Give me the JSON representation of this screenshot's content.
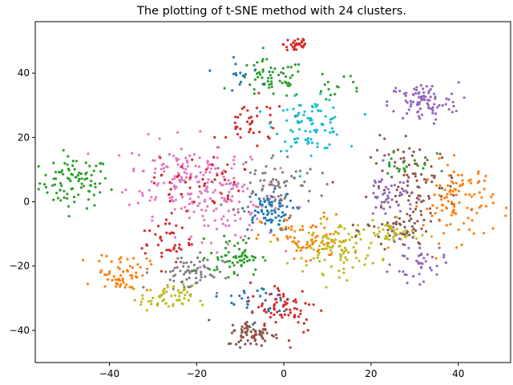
{
  "chart_data": {
    "type": "scatter",
    "title": "The plotting of t-SNE method with 24 clusters.",
    "xlabel": "",
    "ylabel": "",
    "xlim": [
      -57,
      52
    ],
    "ylim": [
      -50,
      56
    ],
    "xticks": [
      -40,
      -20,
      0,
      20,
      40
    ],
    "yticks": [
      -40,
      -20,
      0,
      20,
      40
    ],
    "grid": false,
    "legend": "none",
    "palette": [
      "#1f77b4",
      "#ff7f0e",
      "#2ca02c",
      "#d62728",
      "#9467bd",
      "#8c564b",
      "#e377c2",
      "#7f7f7f",
      "#bcbd22",
      "#17becf"
    ],
    "clusters": [
      {
        "color": "#2ca02c",
        "center": [
          -48,
          6
        ],
        "spread": [
          4,
          4
        ],
        "count": 90
      },
      {
        "color": "#e377c2",
        "center": [
          -24,
          8
        ],
        "spread": [
          6,
          6
        ],
        "count": 130
      },
      {
        "color": "#e377c2",
        "center": [
          -13,
          0
        ],
        "spread": [
          6,
          6
        ],
        "count": 110
      },
      {
        "color": "#d62728",
        "center": [
          3,
          49
        ],
        "spread": [
          1.5,
          1.5
        ],
        "count": 30
      },
      {
        "color": "#2ca02c",
        "center": [
          -3,
          38
        ],
        "spread": [
          4,
          3
        ],
        "count": 60
      },
      {
        "color": "#d62728",
        "center": [
          -7,
          24
        ],
        "spread": [
          4,
          4
        ],
        "count": 40
      },
      {
        "color": "#17becf",
        "center": [
          6,
          24
        ],
        "spread": [
          4,
          4
        ],
        "count": 90
      },
      {
        "color": "#9467bd",
        "center": [
          32,
          31
        ],
        "spread": [
          4,
          3
        ],
        "count": 90
      },
      {
        "color": "#7f7f7f",
        "center": [
          -2,
          5
        ],
        "spread": [
          5,
          5
        ],
        "count": 80
      },
      {
        "color": "#1f77b4",
        "center": [
          -4,
          -3
        ],
        "spread": [
          3,
          3
        ],
        "count": 70
      },
      {
        "color": "#d62728",
        "center": [
          -20,
          6
        ],
        "spread": [
          5,
          4
        ],
        "count": 40
      },
      {
        "color": "#ff7f0e",
        "center": [
          5,
          -12
        ],
        "spread": [
          5,
          4
        ],
        "count": 70
      },
      {
        "color": "#bcbd22",
        "center": [
          12,
          -14
        ],
        "spread": [
          5,
          4
        ],
        "count": 110
      },
      {
        "color": "#8c564b",
        "center": [
          30,
          5
        ],
        "spread": [
          5,
          7
        ],
        "count": 100
      },
      {
        "color": "#ff7f0e",
        "center": [
          40,
          0
        ],
        "spread": [
          4,
          6
        ],
        "count": 100
      },
      {
        "color": "#9467bd",
        "center": [
          24,
          2
        ],
        "spread": [
          3,
          4
        ],
        "count": 50
      },
      {
        "color": "#8c564b",
        "center": [
          27,
          -9
        ],
        "spread": [
          4,
          3
        ],
        "count": 50
      },
      {
        "color": "#bcbd22",
        "center": [
          25,
          -10
        ],
        "spread": [
          3,
          2
        ],
        "count": 40
      },
      {
        "color": "#9467bd",
        "center": [
          31,
          -19
        ],
        "spread": [
          3,
          3
        ],
        "count": 40
      },
      {
        "color": "#ff7f0e",
        "center": [
          -37,
          -22
        ],
        "spread": [
          3,
          3
        ],
        "count": 60
      },
      {
        "color": "#7f7f7f",
        "center": [
          -22,
          -22
        ],
        "spread": [
          4,
          3
        ],
        "count": 70
      },
      {
        "color": "#bcbd22",
        "center": [
          -27,
          -30
        ],
        "spread": [
          3,
          2
        ],
        "count": 60
      },
      {
        "color": "#2ca02c",
        "center": [
          -11,
          -17
        ],
        "spread": [
          3,
          3
        ],
        "count": 60
      },
      {
        "color": "#d62728",
        "center": [
          -27,
          -12
        ],
        "spread": [
          3,
          4
        ],
        "count": 40
      },
      {
        "color": "#1f77b4",
        "center": [
          -5,
          -31
        ],
        "spread": [
          4,
          3
        ],
        "count": 30
      },
      {
        "color": "#d62728",
        "center": [
          0,
          -33
        ],
        "spread": [
          4,
          4
        ],
        "count": 70
      },
      {
        "color": "#8c564b",
        "center": [
          -7,
          -41
        ],
        "spread": [
          3,
          2
        ],
        "count": 70
      },
      {
        "color": "#2ca02c",
        "center": [
          28,
          12
        ],
        "spread": [
          3,
          3
        ],
        "count": 20
      },
      {
        "color": "#1f77b4",
        "center": [
          -10,
          40
        ],
        "spread": [
          3,
          2
        ],
        "count": 15
      },
      {
        "color": "#2ca02c",
        "center": [
          12,
          36
        ],
        "spread": [
          3,
          2
        ],
        "count": 15
      }
    ]
  }
}
